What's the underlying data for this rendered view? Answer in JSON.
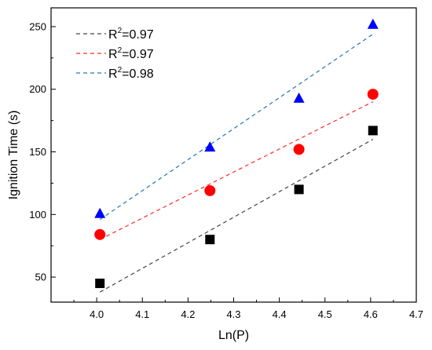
{
  "chart_data": {
    "type": "scatter",
    "title": "",
    "xlabel": "Ln(P)",
    "ylabel": "Ignition Time (s)",
    "xlim": [
      3.9,
      4.7
    ],
    "ylim": [
      30,
      265
    ],
    "xticks": [
      "4.0",
      "4.1",
      "4.2",
      "4.3",
      "4.4",
      "4.5",
      "4.6",
      "4.7"
    ],
    "yticks": [
      "50",
      "100",
      "150",
      "200",
      "250"
    ],
    "grid": false,
    "legend_position": "top-left",
    "series": [
      {
        "marker": "square",
        "color": "#000000",
        "line_color": "#444444",
        "fit_label": "R",
        "fit_sup": "2",
        "fit_value": "=0.97",
        "x": [
          4.007,
          4.248,
          4.443,
          4.605
        ],
        "y": [
          45,
          80,
          120,
          167
        ],
        "fit": {
          "x": [
            4.007,
            4.605
          ],
          "y": [
            38,
            160
          ]
        }
      },
      {
        "marker": "circle",
        "color": "#ff0000",
        "line_color": "#ff2a2a",
        "fit_label": "R",
        "fit_sup": "2",
        "fit_value": "=0.97",
        "x": [
          4.007,
          4.248,
          4.443,
          4.605
        ],
        "y": [
          84,
          119,
          152,
          196
        ],
        "fit": {
          "x": [
            4.007,
            4.605
          ],
          "y": [
            80,
            190
          ]
        }
      },
      {
        "marker": "triangle",
        "color": "#0000ff",
        "line_color": "#1f77b4",
        "fit_label": "R",
        "fit_sup": "2",
        "fit_value": "=0.98",
        "x": [
          4.007,
          4.248,
          4.443,
          4.605
        ],
        "y": [
          101,
          154,
          193,
          252
        ],
        "fit": {
          "x": [
            4.007,
            4.605
          ],
          "y": [
            96,
            244
          ]
        }
      }
    ]
  }
}
